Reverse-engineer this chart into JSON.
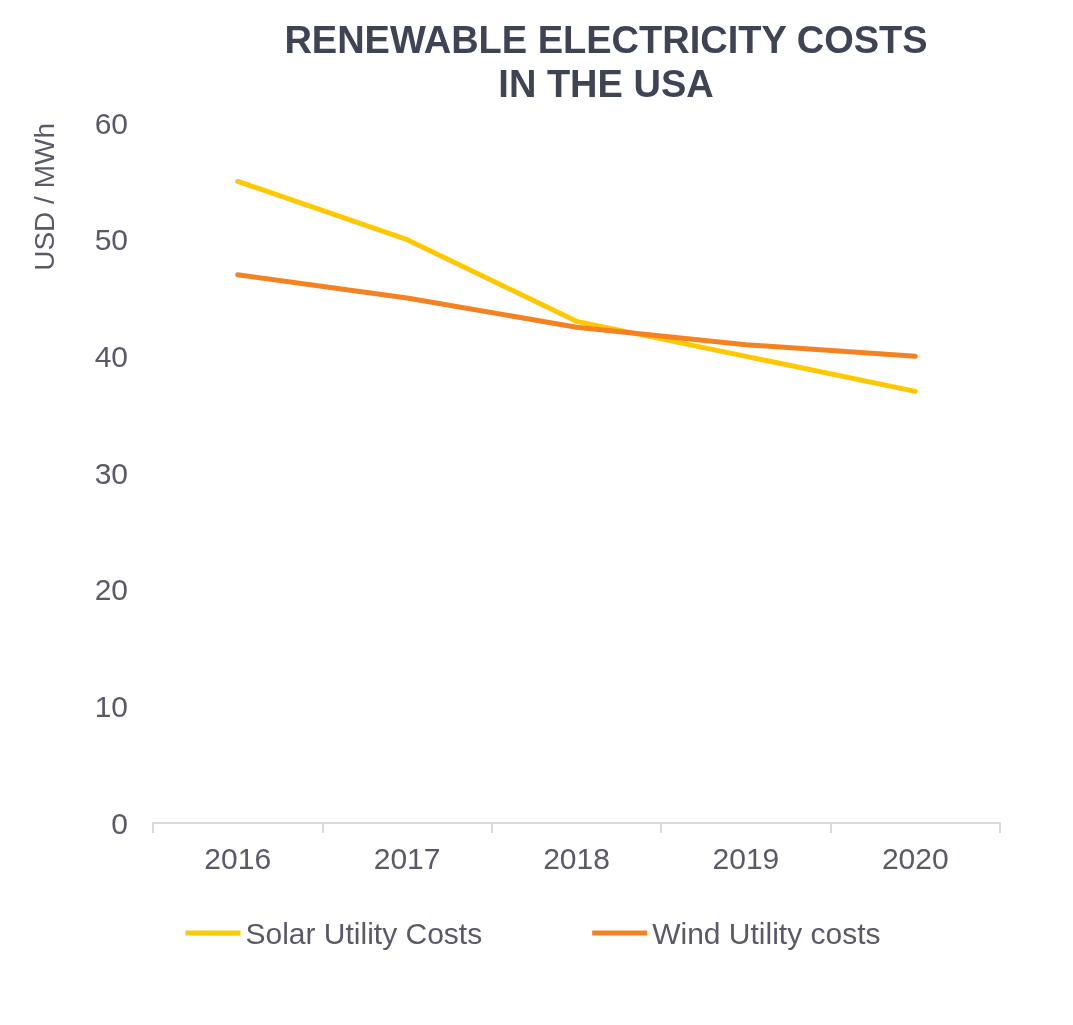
{
  "chart_data": {
    "type": "line",
    "title": "RENEWABLE ELECTRICITY COSTS\nIN THE USA",
    "ylabel": "USD / MWh",
    "categories": [
      "2016",
      "2017",
      "2018",
      "2019",
      "2020"
    ],
    "series": [
      {
        "name": "Solar Utility Costs",
        "color": "#ffc800",
        "values": [
          55,
          50,
          43,
          40,
          37
        ]
      },
      {
        "name": "Wind Utility costs",
        "color": "#f58220",
        "values": [
          47,
          45,
          42.5,
          41,
          40
        ]
      }
    ],
    "ylim": [
      0,
      60
    ],
    "yticks": [
      0,
      10,
      20,
      30,
      40,
      50,
      60
    ],
    "grid": false,
    "legend": "bottom",
    "marker": "none",
    "line_style": "solid"
  }
}
